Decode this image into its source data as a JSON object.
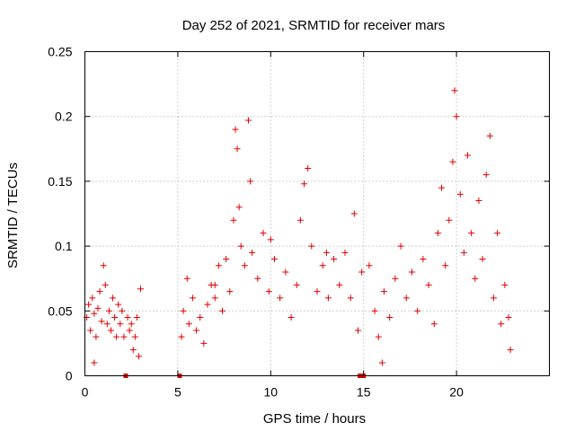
{
  "chart_data": {
    "type": "scatter",
    "title": "Day 252 of 2021, SRMTID for receiver mars",
    "xlabel": "GPS time / hours",
    "ylabel": "SRMTID / TECUs",
    "xlim": [
      0,
      25
    ],
    "ylim": [
      0,
      0.25
    ],
    "x_ticks": [
      0,
      5,
      10,
      15,
      20
    ],
    "y_ticks": [
      0,
      0.05,
      0.1,
      0.15,
      0.2,
      0.25
    ],
    "x_tick_labels": [
      "0",
      "5",
      "10",
      "15",
      "20"
    ],
    "y_tick_labels": [
      "0",
      "0.05",
      "0.1",
      "0.15",
      "0.2",
      "0.25"
    ],
    "grid": true,
    "marker": "plus",
    "series": [
      {
        "name": "SRMTID",
        "color": "#e00000",
        "points": [
          [
            0.1,
            0.045
          ],
          [
            0.2,
            0.055
          ],
          [
            0.3,
            0.035
          ],
          [
            0.4,
            0.06
          ],
          [
            0.5,
            0.048
          ],
          [
            0.6,
            0.03
          ],
          [
            0.7,
            0.052
          ],
          [
            0.8,
            0.065
          ],
          [
            0.9,
            0.042
          ],
          [
            1.0,
            0.085
          ],
          [
            1.1,
            0.07
          ],
          [
            1.2,
            0.04
          ],
          [
            1.3,
            0.05
          ],
          [
            1.4,
            0.035
          ],
          [
            1.5,
            0.06
          ],
          [
            1.6,
            0.045
          ],
          [
            1.7,
            0.03
          ],
          [
            1.8,
            0.055
          ],
          [
            1.9,
            0.04
          ],
          [
            2.0,
            0.05
          ],
          [
            2.1,
            0.03
          ],
          [
            2.3,
            0.045
          ],
          [
            2.4,
            0.035
          ],
          [
            2.5,
            0.04
          ],
          [
            2.6,
            0.02
          ],
          [
            2.7,
            0.03
          ],
          [
            2.8,
            0.045
          ],
          [
            2.9,
            0.015
          ],
          [
            3.0,
            0.067
          ],
          [
            0.5,
            0.01
          ],
          [
            5.2,
            0.03
          ],
          [
            5.3,
            0.05
          ],
          [
            5.5,
            0.075
          ],
          [
            5.6,
            0.04
          ],
          [
            5.8,
            0.06
          ],
          [
            6.0,
            0.035
          ],
          [
            6.2,
            0.045
          ],
          [
            6.4,
            0.025
          ],
          [
            6.6,
            0.055
          ],
          [
            6.8,
            0.07
          ],
          [
            7.0,
            0.06
          ],
          [
            7.2,
            0.085
          ],
          [
            7.4,
            0.05
          ],
          [
            7.6,
            0.09
          ],
          [
            7.8,
            0.065
          ],
          [
            8.0,
            0.12
          ],
          [
            8.1,
            0.19
          ],
          [
            8.2,
            0.175
          ],
          [
            8.3,
            0.13
          ],
          [
            8.4,
            0.1
          ],
          [
            8.6,
            0.085
          ],
          [
            8.8,
            0.197
          ],
          [
            8.9,
            0.15
          ],
          [
            9.0,
            0.095
          ],
          [
            9.3,
            0.075
          ],
          [
            9.6,
            0.11
          ],
          [
            9.9,
            0.065
          ],
          [
            10.2,
            0.09
          ],
          [
            10.5,
            0.06
          ],
          [
            10.8,
            0.08
          ],
          [
            11.1,
            0.045
          ],
          [
            11.4,
            0.07
          ],
          [
            11.6,
            0.12
          ],
          [
            11.8,
            0.148
          ],
          [
            12.0,
            0.16
          ],
          [
            12.2,
            0.1
          ],
          [
            12.5,
            0.065
          ],
          [
            12.8,
            0.085
          ],
          [
            13.1,
            0.06
          ],
          [
            13.4,
            0.09
          ],
          [
            13.7,
            0.07
          ],
          [
            14.0,
            0.095
          ],
          [
            14.3,
            0.06
          ],
          [
            14.5,
            0.125
          ],
          [
            14.7,
            0.035
          ],
          [
            14.9,
            0.08
          ],
          [
            15.3,
            0.085
          ],
          [
            15.6,
            0.05
          ],
          [
            15.8,
            0.03
          ],
          [
            16.1,
            0.065
          ],
          [
            16.4,
            0.045
          ],
          [
            16.7,
            0.075
          ],
          [
            17.0,
            0.1
          ],
          [
            17.3,
            0.06
          ],
          [
            17.6,
            0.08
          ],
          [
            17.9,
            0.05
          ],
          [
            18.2,
            0.09
          ],
          [
            18.5,
            0.07
          ],
          [
            18.8,
            0.04
          ],
          [
            19.0,
            0.11
          ],
          [
            19.2,
            0.145
          ],
          [
            19.4,
            0.085
          ],
          [
            19.6,
            0.12
          ],
          [
            19.8,
            0.165
          ],
          [
            19.9,
            0.22
          ],
          [
            20.0,
            0.2
          ],
          [
            20.2,
            0.14
          ],
          [
            20.4,
            0.095
          ],
          [
            20.6,
            0.17
          ],
          [
            20.8,
            0.11
          ],
          [
            21.0,
            0.075
          ],
          [
            21.2,
            0.135
          ],
          [
            21.4,
            0.09
          ],
          [
            21.6,
            0.155
          ],
          [
            21.8,
            0.185
          ],
          [
            22.0,
            0.06
          ],
          [
            22.2,
            0.11
          ],
          [
            22.4,
            0.04
          ],
          [
            22.6,
            0.07
          ],
          [
            22.8,
            0.045
          ],
          [
            22.9,
            0.02
          ],
          [
            16.0,
            0.01
          ],
          [
            13.0,
            0.095
          ],
          [
            10.0,
            0.105
          ],
          [
            7.0,
            0.07
          ]
        ],
        "zero_markers": [
          2.2,
          5.1,
          14.8,
          14.9,
          15.0
        ]
      }
    ]
  }
}
